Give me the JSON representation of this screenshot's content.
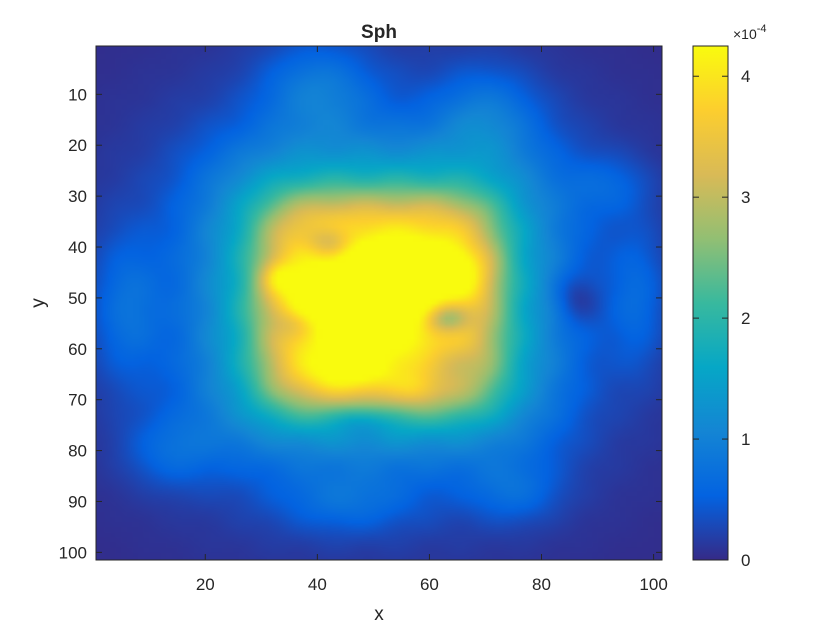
{
  "chart_data": {
    "type": "heatmap",
    "title": "Sph",
    "xlabel": "x",
    "ylabel": "y",
    "xlim": [
      0.5,
      101.5
    ],
    "ylim": [
      0.5,
      101.5
    ],
    "y_reversed": true,
    "grid": false,
    "colormap": "parula",
    "x_ticks": [
      20,
      40,
      60,
      80,
      100
    ],
    "y_ticks": [
      10,
      20,
      30,
      40,
      50,
      60,
      70,
      80,
      90,
      100
    ],
    "colorbar": {
      "position": "right",
      "clim": [
        0,
        0.000425
      ],
      "ticks": [
        0,
        1,
        2,
        3,
        4
      ],
      "tick_labels": [
        "0",
        "1",
        "2",
        "3",
        "4"
      ],
      "exponent_label": "×10",
      "exponent_value": "-4",
      "units_multiplier": 0.0001
    },
    "grid_size": [
      101,
      101
    ],
    "value_units": "1e-4",
    "blobs": [
      {
        "cx": 51,
        "cy": 51,
        "rx": 21,
        "ry": 21,
        "amp": 1.3,
        "p": 5
      },
      {
        "cx": 51,
        "cy": 50,
        "rx": 31,
        "ry": 30,
        "amp": 1.1,
        "p": 4
      },
      {
        "cx": 50,
        "cy": 50,
        "rx": 42,
        "ry": 41,
        "amp": 0.45,
        "p": 2.2
      },
      {
        "cx": 40,
        "cy": 9,
        "rx": 10,
        "ry": 9,
        "amp": 0.45,
        "p": 2
      },
      {
        "cx": 70,
        "cy": 14,
        "rx": 9,
        "ry": 9,
        "amp": 0.4,
        "p": 2
      },
      {
        "cx": 92,
        "cy": 28,
        "rx": 7,
        "ry": 6,
        "amp": 0.25,
        "p": 2
      },
      {
        "cx": 6,
        "cy": 52,
        "rx": 6,
        "ry": 14,
        "amp": 0.35,
        "p": 2
      },
      {
        "cx": 97,
        "cy": 50,
        "rx": 5,
        "ry": 14,
        "amp": 0.3,
        "p": 2
      },
      {
        "cx": 14,
        "cy": 80,
        "rx": 8,
        "ry": 7,
        "amp": 0.3,
        "p": 2
      },
      {
        "cx": 45,
        "cy": 90,
        "rx": 12,
        "ry": 6,
        "amp": 0.3,
        "p": 2
      },
      {
        "cx": 75,
        "cy": 88,
        "rx": 8,
        "ry": 6,
        "amp": 0.3,
        "p": 2
      },
      {
        "cx": 52,
        "cy": 47,
        "rx": 6,
        "ry": 5,
        "amp": 1.2,
        "p": 2
      },
      {
        "cx": 60,
        "cy": 43,
        "rx": 9,
        "ry": 3.5,
        "amp": 0.5,
        "p": 2
      },
      {
        "cx": 44,
        "cy": 50,
        "rx": 11,
        "ry": 5,
        "amp": 0.5,
        "p": 2
      },
      {
        "cx": 33,
        "cy": 46,
        "rx": 3,
        "ry": 3,
        "amp": 0.5,
        "p": 2
      },
      {
        "cx": 67,
        "cy": 47,
        "rx": 5,
        "ry": 4,
        "amp": 0.3,
        "p": 2
      },
      {
        "cx": 45,
        "cy": 65,
        "rx": 7,
        "ry": 4,
        "amp": 0.35,
        "p": 2
      },
      {
        "cx": 58,
        "cy": 68,
        "rx": 4,
        "ry": 3,
        "amp": 0.25,
        "p": 2
      },
      {
        "cx": 63,
        "cy": 54,
        "rx": 4,
        "ry": 3,
        "amp": -0.9,
        "p": 2
      },
      {
        "cx": 42,
        "cy": 39,
        "rx": 4,
        "ry": 3,
        "amp": -0.6,
        "p": 2
      },
      {
        "cx": 63,
        "cy": 63,
        "rx": 6,
        "ry": 5,
        "amp": -0.45,
        "p": 2
      },
      {
        "cx": 36,
        "cy": 55,
        "rx": 4,
        "ry": 3,
        "amp": -0.35,
        "p": 2
      },
      {
        "cx": 48,
        "cy": 74,
        "rx": 5,
        "ry": 3,
        "amp": -0.35,
        "p": 2
      },
      {
        "cx": 86,
        "cy": 50,
        "rx": 4,
        "ry": 5,
        "amp": -0.3,
        "p": 2
      }
    ]
  }
}
